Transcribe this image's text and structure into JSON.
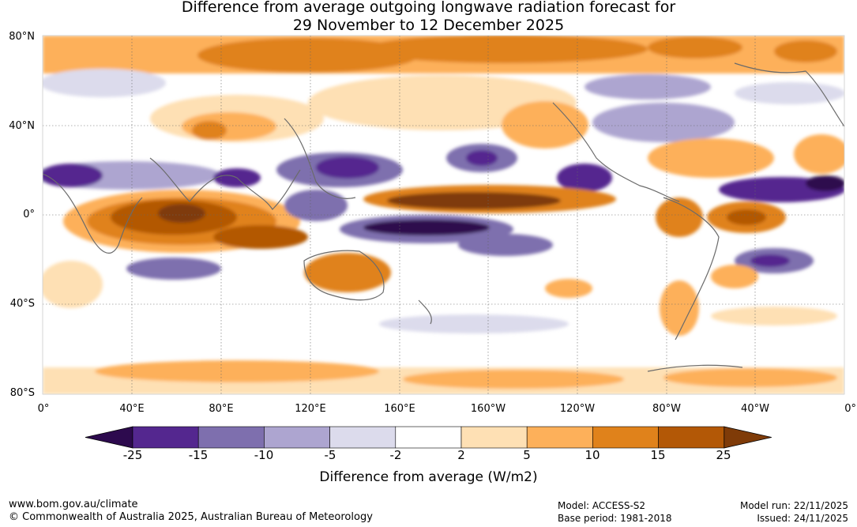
{
  "title_line1": "Difference from average outgoing longwave radiation forecast for",
  "title_line2": "29 November to 12 December 2025",
  "lat_labels": [
    "80°N",
    "40°N",
    "0°",
    "40°S",
    "80°S"
  ],
  "lon_labels": [
    "0°",
    "40°E",
    "80°E",
    "120°E",
    "160°E",
    "160°W",
    "120°W",
    "80°W",
    "40°W",
    "0°"
  ],
  "colorbar": {
    "ticks": [
      "-25",
      "-15",
      "-10",
      "-5",
      "-2",
      "2",
      "5",
      "10",
      "15",
      "25"
    ],
    "colors": [
      "#2d0a4e",
      "#54278f",
      "#7e6fae",
      "#ada5d0",
      "#dcdbec",
      "#ffffff",
      "#fee0b4",
      "#fdb05a",
      "#e0821b",
      "#b35806",
      "#7f3b08"
    ],
    "title": "Difference from average (W/m2)"
  },
  "footer": {
    "url": "www.bom.gov.au/climate",
    "copyright": "© Commonwealth of Australia 2025, Australian Bureau of Meteorology",
    "model": "Model: ACCESS-S2",
    "base_period": "Base period: 1981-2018",
    "model_run": "Model run: 22/11/2025",
    "issued": "Issued: 24/11/2025"
  }
}
